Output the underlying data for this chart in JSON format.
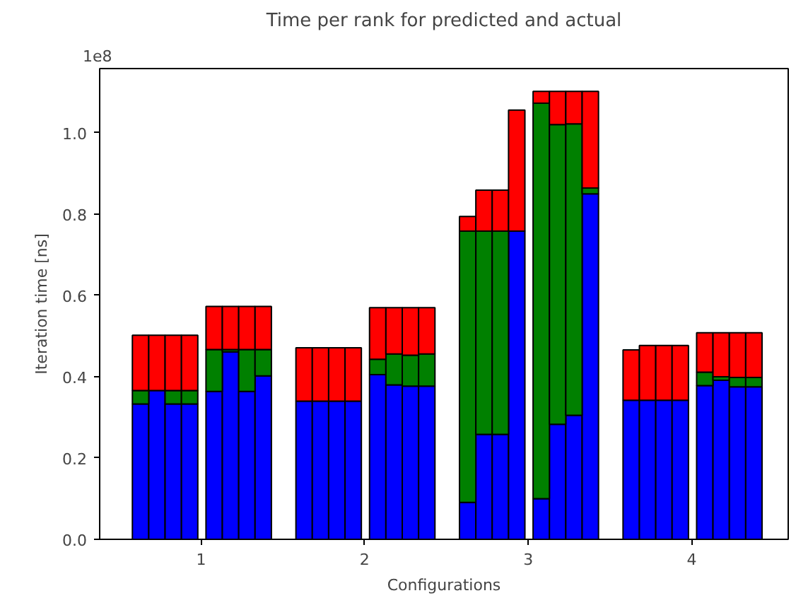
{
  "chart_data": {
    "type": "bar",
    "stacked": true,
    "title": "Time per rank for predicted and actual",
    "xlabel": "Configurations",
    "ylabel": "Iteration time [ns]",
    "annotations": [
      "1e8"
    ],
    "x": [
      0.63,
      0.73,
      0.83,
      0.93,
      1.08,
      1.18,
      1.28,
      1.38,
      1.63,
      1.73,
      1.83,
      1.93,
      2.08,
      2.18,
      2.28,
      2.38,
      2.63,
      2.73,
      2.83,
      2.93,
      3.08,
      3.18,
      3.28,
      3.38,
      3.63,
      3.73,
      3.83,
      3.93,
      4.08,
      4.18,
      4.28,
      4.38
    ],
    "series": [
      {
        "color": "#0000ff",
        "values": [
          0.333,
          0.366,
          0.333,
          0.333,
          0.364,
          0.461,
          0.364,
          0.402,
          0.34,
          0.34,
          0.34,
          0.34,
          0.405,
          0.38,
          0.377,
          0.377,
          0.091,
          0.258,
          0.258,
          0.758,
          0.1,
          0.283,
          0.305,
          0.85,
          0.342,
          0.342,
          0.342,
          0.342,
          0.378,
          0.391,
          0.375,
          0.375
        ]
      },
      {
        "color": "#008000",
        "values": [
          0.033,
          0,
          0.033,
          0.033,
          0.103,
          0.006,
          0.103,
          0.065,
          0,
          0,
          0,
          0,
          0.038,
          0.076,
          0.076,
          0.079,
          0.667,
          0.5,
          0.5,
          0,
          0.973,
          0.737,
          0.717,
          0.014,
          0,
          0,
          0,
          0,
          0.033,
          0.009,
          0.023,
          0.023
        ]
      },
      {
        "color": "#ff0000",
        "values": [
          0.136,
          0.136,
          0.136,
          0.136,
          0.106,
          0.106,
          0.106,
          0.106,
          0.131,
          0.131,
          0.131,
          0.131,
          0.127,
          0.114,
          0.117,
          0.114,
          0.036,
          0.101,
          0.101,
          0.298,
          0.029,
          0.082,
          0.08,
          0.238,
          0.124,
          0.135,
          0.135,
          0.135,
          0.097,
          0.108,
          0.11,
          0.11
        ]
      }
    ],
    "xlim": [
      0.38,
      4.59
    ],
    "ylim": [
      0,
      1.158
    ],
    "xticks": [
      1,
      2,
      3,
      4
    ],
    "yticks": [
      {
        "value": 0,
        "label": "0.0"
      },
      {
        "value": 0.2,
        "label": "0.2"
      },
      {
        "value": 0.4,
        "label": "0.4"
      },
      {
        "value": 0.6,
        "label": "0.6"
      },
      {
        "value": 0.8,
        "label": "0.8"
      },
      {
        "value": 1.0,
        "label": "1.0"
      }
    ],
    "grid": false
  }
}
